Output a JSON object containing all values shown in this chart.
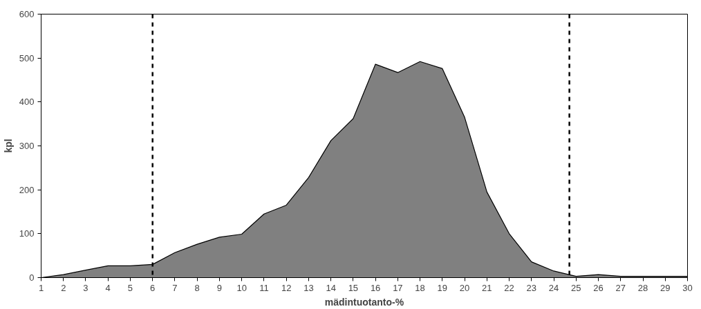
{
  "chart_data": {
    "type": "area",
    "xlabel": "mädintuotanto-%",
    "ylabel": "kpl",
    "x": [
      1,
      2,
      3,
      4,
      5,
      6,
      7,
      8,
      9,
      10,
      11,
      12,
      13,
      14,
      15,
      16,
      17,
      18,
      19,
      20,
      21,
      22,
      23,
      24,
      25,
      26,
      27,
      28,
      29,
      30
    ],
    "series": [
      {
        "color": "#808080",
        "values": [
          0,
          7,
          17,
          27,
          27,
          30,
          57,
          76,
          92,
          99,
          145,
          165,
          228,
          312,
          362,
          486,
          467,
          492,
          476,
          365,
          195,
          100,
          36,
          15,
          3,
          7,
          3,
          3,
          3,
          3
        ]
      }
    ],
    "ref_lines": [
      {
        "axis": "x",
        "value": 6,
        "color": "#000000",
        "line_style": "dashed"
      },
      {
        "axis": "x",
        "value": 24.7,
        "color": "#000000",
        "line_style": "dashed"
      }
    ],
    "xlim": [
      1,
      30
    ],
    "xticks": [
      1,
      2,
      3,
      4,
      5,
      6,
      7,
      8,
      9,
      10,
      11,
      12,
      13,
      14,
      15,
      16,
      17,
      18,
      19,
      20,
      21,
      22,
      23,
      24,
      25,
      26,
      27,
      28,
      29,
      30
    ],
    "ylim": [
      0,
      600
    ],
    "yticks": [
      0,
      100,
      200,
      300,
      400,
      500,
      600
    ],
    "grid": false
  }
}
